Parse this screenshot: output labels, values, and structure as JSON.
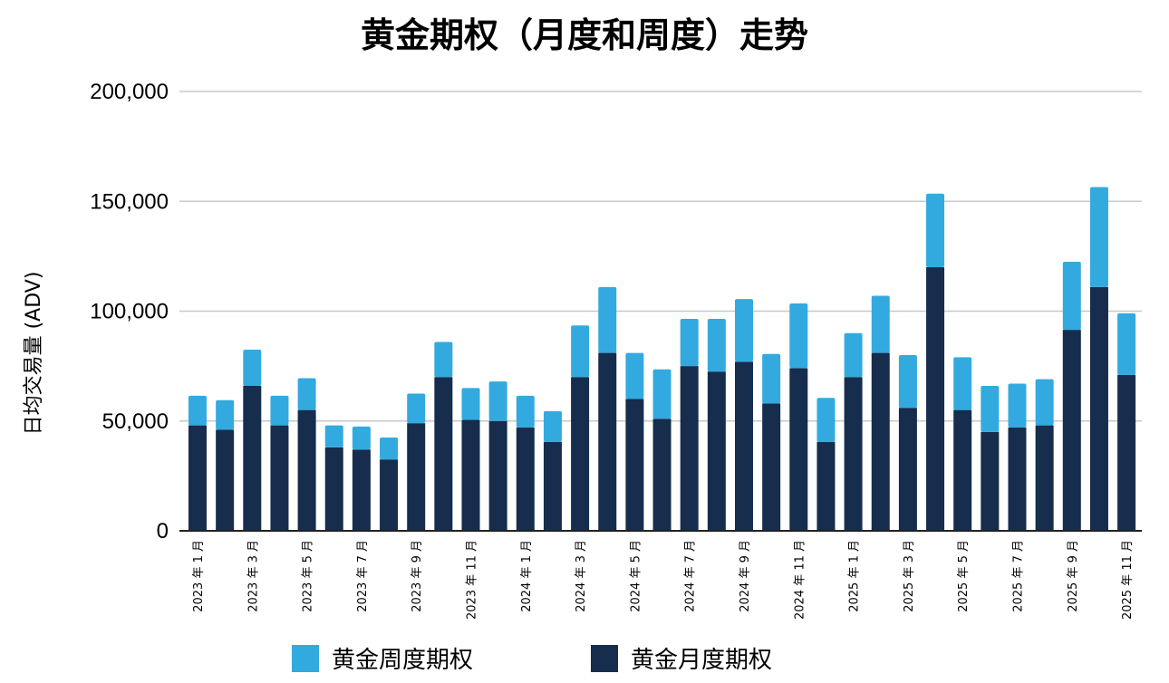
{
  "chart_data": {
    "type": "bar",
    "stacked": true,
    "title": "黄金期权（月度和周度）走势",
    "ylabel": "日均交易量 (ADV)",
    "xlabel": "",
    "ylim": [
      0,
      200000
    ],
    "yticks": [
      0,
      50000,
      100000,
      150000,
      200000
    ],
    "ytick_labels": [
      "0",
      "50,000",
      "100,000",
      "150,000",
      "200,000"
    ],
    "grid": true,
    "legend_position": "bottom",
    "categories": [
      "2023年1月",
      "2023年2月",
      "2023年3月",
      "2023年4月",
      "2023年5月",
      "2023年6月",
      "2023年7月",
      "2023年8月",
      "2023年9月",
      "2023年10月",
      "2023年11月",
      "2023年12月",
      "2024年1月",
      "2024年2月",
      "2024年3月",
      "2024年4月",
      "2024年5月",
      "2024年6月",
      "2024年7月",
      "2024年8月",
      "2024年9月",
      "2024年10月",
      "2024年11月",
      "2024年12月",
      "2025年1月",
      "2025年2月",
      "2025年3月",
      "2025年4月",
      "2025年5月",
      "2025年6月",
      "2025年7月",
      "2025年8月",
      "2025年9月",
      "2025年10月",
      "2025年11月"
    ],
    "tick_labels_shown": [
      "2023 年 1 月",
      "",
      "2023 年 3 月",
      "",
      "2023 年 5 月",
      "",
      "2023 年 7 月",
      "",
      "2023 年 9 月",
      "",
      "2023 年 11 月",
      "",
      "2024 年 1 月",
      "",
      "2024 年 3 月",
      "",
      "2024 年 5 月",
      "",
      "2024 年 7 月",
      "",
      "2024 年 9 月",
      "",
      "2024 年 11 月",
      "",
      "2025 年 1 月",
      "",
      "2025 年 3 月",
      "",
      "2025 年 5 月",
      "",
      "2025 年 7 月",
      "",
      "2025 年 9 月",
      "",
      "2025 年 11 月"
    ],
    "series": [
      {
        "name": "黄金月度期权",
        "color": "#162d4d",
        "values": [
          48000,
          46000,
          66000,
          48000,
          55000,
          38000,
          37000,
          32500,
          49000,
          70000,
          50500,
          50000,
          47000,
          40500,
          70000,
          81000,
          60000,
          51000,
          75000,
          72500,
          77000,
          58000,
          74000,
          40500,
          70000,
          81000,
          56000,
          120000,
          55000,
          45000,
          47000,
          48000,
          91500,
          111000,
          71000
        ]
      },
      {
        "name": "黄金周度期权",
        "color": "#33aadf",
        "values": [
          13500,
          13500,
          16500,
          13500,
          14500,
          10000,
          10500,
          10000,
          13500,
          16000,
          14500,
          18000,
          14500,
          14000,
          23500,
          30000,
          21000,
          22500,
          21500,
          24000,
          28500,
          22500,
          29500,
          20000,
          20000,
          26000,
          24000,
          33500,
          24000,
          21000,
          20000,
          21000,
          31000,
          45500,
          28000
        ]
      }
    ],
    "legend": [
      {
        "name": "黄金周度期权",
        "color": "#33aadf"
      },
      {
        "name": "黄金月度期权",
        "color": "#162d4d"
      }
    ]
  }
}
